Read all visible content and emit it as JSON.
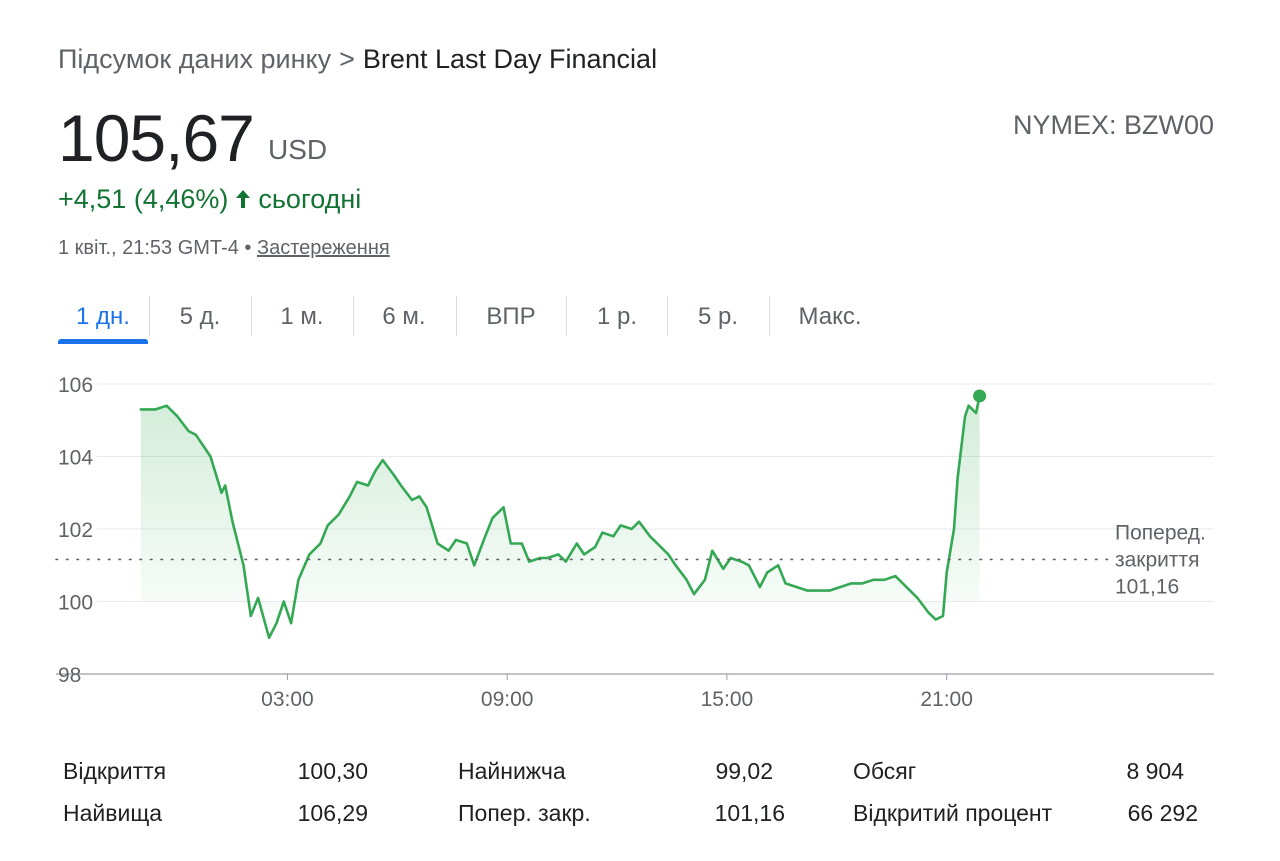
{
  "breadcrumb": {
    "parent": "Підсумок даних ринку",
    "separator": ">",
    "current": "Brent Last Day Financial"
  },
  "quote": {
    "price": "105,67",
    "currency": "USD",
    "exchange_symbol": "NYMEX: BZW00",
    "change": "+4,51 (4,46%)",
    "change_period": "сьогодні",
    "timestamp": "1 квіт., 21:53 GMT-4",
    "bullet": "•",
    "disclaimer_link": "Застереження",
    "icon": "arrow-up-icon",
    "colors": {
      "positive": "#137333",
      "line": "#34a853",
      "accent": "#1a73e8"
    }
  },
  "tabs": [
    {
      "label": "1 дн.",
      "active": true
    },
    {
      "label": "5 д.",
      "active": false
    },
    {
      "label": "1 м.",
      "active": false
    },
    {
      "label": "6 м.",
      "active": false
    },
    {
      "label": "ВПР",
      "active": false
    },
    {
      "label": "1 р.",
      "active": false
    },
    {
      "label": "5 р.",
      "active": false
    },
    {
      "label": "Макс.",
      "active": false
    }
  ],
  "chart_data": {
    "type": "line",
    "x_unit": "hours",
    "xlim": [
      -2.2,
      28.3
    ],
    "ylim": [
      98,
      106
    ],
    "yticks": [
      106,
      104,
      102,
      100,
      98
    ],
    "ytick_labels": [
      "106",
      "104",
      "102",
      "100",
      "98"
    ],
    "xticks": [
      3,
      9,
      15,
      21
    ],
    "xtick_labels": [
      "03:00",
      "09:00",
      "15:00",
      "21:00"
    ],
    "grid": true,
    "baseline": {
      "value": 101.16,
      "label_lines": [
        "Поперед.",
        "закриття",
        "101,16"
      ]
    },
    "series": [
      {
        "x": [
          -1.0,
          -0.6,
          -0.3,
          0.0,
          0.3,
          0.5,
          0.9,
          1.2,
          1.3,
          1.5,
          1.8,
          2.0,
          2.2,
          2.5,
          2.7,
          2.9,
          3.1,
          3.3,
          3.6,
          3.9,
          4.1,
          4.4,
          4.7,
          4.9,
          5.2,
          5.4,
          5.6,
          5.9,
          6.1,
          6.4,
          6.6,
          6.8,
          7.1,
          7.4,
          7.6,
          7.9,
          8.1,
          8.4,
          8.6,
          8.9,
          9.1,
          9.4,
          9.6,
          9.9,
          10.1,
          10.4,
          10.6,
          10.9,
          11.1,
          11.4,
          11.6,
          11.9,
          12.1,
          12.4,
          12.6,
          12.9,
          13.1,
          13.4,
          13.6,
          13.9,
          14.1,
          14.4,
          14.6,
          14.9,
          15.1,
          15.4,
          15.6,
          15.9,
          16.1,
          16.4,
          16.6,
          16.9,
          17.2,
          17.5,
          17.8,
          18.1,
          18.4,
          18.7,
          19.0,
          19.3,
          19.6,
          19.9,
          20.2,
          20.5,
          20.7,
          20.9,
          21.0,
          21.2,
          21.3,
          21.5,
          21.6,
          21.8,
          21.9
        ],
        "y": [
          105.3,
          105.3,
          105.4,
          105.1,
          104.7,
          104.6,
          104.0,
          103.0,
          103.2,
          102.2,
          101.0,
          99.6,
          100.1,
          99.0,
          99.4,
          100.0,
          99.4,
          100.6,
          101.3,
          101.6,
          102.1,
          102.4,
          102.9,
          103.3,
          103.2,
          103.6,
          103.9,
          103.5,
          103.2,
          102.8,
          102.9,
          102.6,
          101.6,
          101.4,
          101.7,
          101.6,
          101.0,
          101.8,
          102.3,
          102.6,
          101.6,
          101.6,
          101.1,
          101.2,
          101.2,
          101.3,
          101.1,
          101.6,
          101.3,
          101.5,
          101.9,
          101.8,
          102.1,
          102.0,
          102.2,
          101.8,
          101.6,
          101.3,
          101.0,
          100.6,
          100.2,
          100.6,
          101.4,
          100.9,
          101.2,
          101.1,
          101.0,
          100.4,
          100.8,
          101.0,
          100.5,
          100.4,
          100.3,
          100.3,
          100.3,
          100.4,
          100.5,
          100.5,
          100.6,
          100.6,
          100.7,
          100.4,
          100.1,
          99.7,
          99.5,
          99.6,
          100.8,
          102.0,
          103.4,
          105.1,
          105.4,
          105.2,
          105.67
        ]
      }
    ],
    "last_point": {
      "x": 21.9,
      "y": 105.67
    }
  },
  "stats": [
    {
      "label": "Відкриття",
      "value": "100,30"
    },
    {
      "label": "Найвища",
      "value": "106,29"
    },
    {
      "label": "Найнижча",
      "value": "99,02"
    },
    {
      "label": "Попер. закр.",
      "value": "101,16"
    },
    {
      "label": "Обсяг",
      "value": "8 904"
    },
    {
      "label": "Відкритий процент",
      "value": "66 292"
    }
  ]
}
